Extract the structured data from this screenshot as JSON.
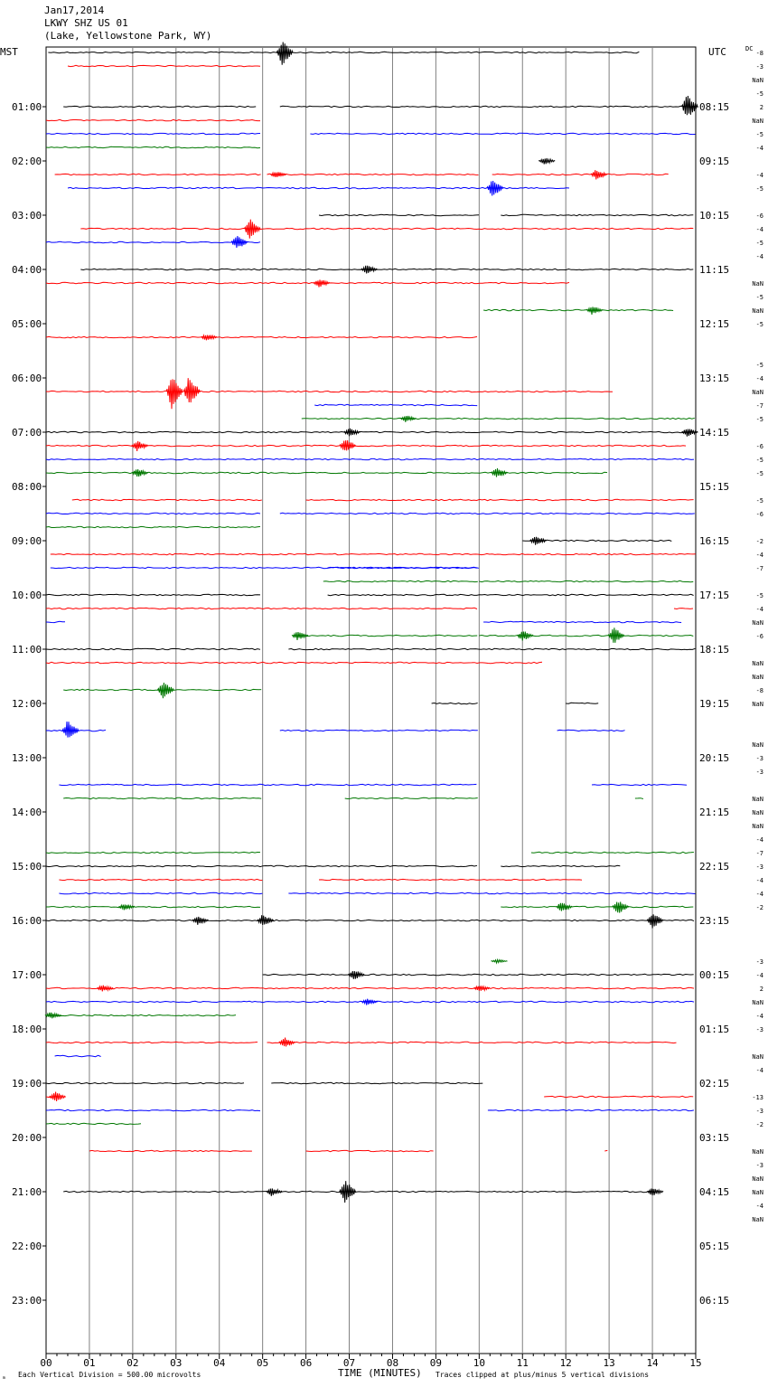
{
  "header": {
    "line1": "Jan17,2014",
    "line2": "LKWY SHZ US 01",
    "line3": "(Lake, Yellowstone Park, WY)"
  },
  "axis": {
    "left_label": "MST",
    "right_label": "UTC",
    "dc_label": "DC",
    "xlabel": "TIME (MINUTES)",
    "x_ticks": [
      "00",
      "01",
      "02",
      "03",
      "04",
      "05",
      "06",
      "07",
      "08",
      "09",
      "10",
      "11",
      "12",
      "13",
      "14",
      "15"
    ],
    "footer_left": "Each Vertical Division =   500.00 microvolts",
    "footer_right": "Traces clipped at plus/minus 5 vertical divisions",
    "corner_mark": "ₘ"
  },
  "colors": {
    "cycle": [
      "#000000",
      "#ff0000",
      "#0000ff",
      "#007700"
    ],
    "grid": "#808080"
  },
  "chart_data": {
    "type": "line",
    "title": "LKWY SHZ US 01",
    "xlabel": "TIME (MINUTES)",
    "xlim": [
      0,
      15
    ],
    "row_minutes": 15,
    "hour_labels_mst": [
      "01:00",
      "02:00",
      "03:00",
      "04:00",
      "05:00",
      "06:00",
      "07:00",
      "08:00",
      "09:00",
      "10:00",
      "11:00",
      "12:00",
      "13:00",
      "14:00",
      "15:00",
      "16:00",
      "17:00",
      "18:00",
      "19:00",
      "20:00",
      "21:00",
      "22:00",
      "23:00"
    ],
    "hour_labels_utc": [
      "08:15",
      "09:15",
      "10:15",
      "11:15",
      "12:15",
      "13:15",
      "14:15",
      "15:15",
      "16:15",
      "17:15",
      "18:15",
      "19:15",
      "20:15",
      "21:15",
      "22:15",
      "23:15",
      "00:15",
      "01:15",
      "02:15",
      "03:15",
      "04:15",
      "05:15",
      "06:15"
    ],
    "dc_offsets": [
      "-8",
      "-3",
      "NaN",
      "-5",
      "2",
      "NaN",
      "-5",
      "-4",
      "",
      "-4",
      "-5",
      "",
      "-6",
      "-4",
      "-5",
      "-4",
      "",
      "NaN",
      "-5",
      "NaN",
      "-5",
      "",
      "",
      "-5",
      "-4",
      "NaN",
      "-7",
      "-5",
      "",
      "-6",
      "-5",
      "-5",
      "",
      "-5",
      "-6",
      "",
      "-2",
      "-4",
      "-7",
      "",
      "-5",
      "-4",
      "NaN",
      "-6",
      "",
      "NaN",
      "NaN",
      "-8",
      "NaN",
      "",
      "",
      "NaN",
      "-3",
      "-3",
      "",
      "NaN",
      "NaN",
      "NaN",
      "-4",
      "-7",
      "-3",
      "-4",
      "-4",
      "-2",
      "",
      "",
      "",
      "-3",
      "-4",
      "2",
      "NaN",
      "-4",
      "-3",
      "",
      "NaN",
      "-4",
      "",
      "-13",
      "-3",
      "-2",
      "",
      "NaN",
      "-3",
      "NaN",
      "NaN",
      "-4",
      "NaN"
    ],
    "traces": [
      {
        "segments": [
          [
            0.05,
            13.7
          ]
        ],
        "events": [
          [
            5.45,
            14
          ]
        ]
      },
      {
        "segments": [
          [
            0.5,
            5.0
          ]
        ],
        "events": []
      },
      {
        "segments": [],
        "events": []
      },
      {
        "segments": [],
        "events": []
      },
      {
        "segments": [
          [
            0.4,
            4.9
          ],
          [
            5.4,
            15.0
          ]
        ],
        "events": [
          [
            14.8,
            14
          ]
        ]
      },
      {
        "segments": [
          [
            0.0,
            5.0
          ]
        ],
        "events": []
      },
      {
        "segments": [
          [
            0.0,
            5.0
          ],
          [
            6.1,
            15.0
          ]
        ],
        "events": []
      },
      {
        "segments": [
          [
            0.0,
            5.0
          ]
        ],
        "events": []
      },
      {
        "segments": [],
        "events": [
          [
            11.5,
            4
          ]
        ]
      },
      {
        "segments": [
          [
            0.2,
            5.0
          ],
          [
            5.1,
            10.0
          ],
          [
            10.3,
            14.4
          ]
        ],
        "events": [
          [
            5.3,
            4
          ],
          [
            12.7,
            6
          ]
        ]
      },
      {
        "segments": [
          [
            0.5,
            12.1
          ]
        ],
        "events": [
          [
            10.3,
            10
          ]
        ]
      },
      {
        "segments": [],
        "events": []
      },
      {
        "segments": [
          [
            6.3,
            10.0
          ],
          [
            10.5,
            15.0
          ]
        ],
        "events": []
      },
      {
        "segments": [
          [
            0.8,
            15.0
          ]
        ],
        "events": [
          [
            4.7,
            12
          ]
        ]
      },
      {
        "segments": [
          [
            0.0,
            5.0
          ]
        ],
        "events": [
          [
            4.4,
            8
          ]
        ]
      },
      {
        "segments": [],
        "events": []
      },
      {
        "segments": [
          [
            0.8,
            15.0
          ]
        ],
        "events": [
          [
            7.4,
            5
          ]
        ]
      },
      {
        "segments": [
          [
            0.0,
            12.1
          ]
        ],
        "events": [
          [
            6.3,
            5
          ]
        ]
      },
      {
        "segments": [],
        "events": []
      },
      {
        "segments": [
          [
            10.1,
            14.5
          ]
        ],
        "events": [
          [
            12.6,
            5
          ]
        ]
      },
      {
        "segments": [],
        "events": []
      },
      {
        "segments": [
          [
            0.0,
            10.0
          ]
        ],
        "events": [
          [
            3.7,
            4
          ]
        ]
      },
      {
        "segments": [],
        "events": []
      },
      {
        "segments": [],
        "events": []
      },
      {
        "segments": [],
        "events": []
      },
      {
        "segments": [
          [
            0.0,
            13.1
          ]
        ],
        "events": [
          [
            2.9,
            20
          ],
          [
            3.3,
            18
          ]
        ]
      },
      {
        "segments": [
          [
            6.2,
            10.0
          ]
        ],
        "events": []
      },
      {
        "segments": [
          [
            5.9,
            15.0
          ]
        ],
        "events": [
          [
            8.3,
            4
          ]
        ]
      },
      {
        "segments": [
          [
            0.0,
            15.0
          ]
        ],
        "events": [
          [
            7.0,
            5
          ],
          [
            14.8,
            5
          ]
        ]
      },
      {
        "segments": [
          [
            0.0,
            14.8
          ]
        ],
        "events": [
          [
            2.1,
            6
          ],
          [
            6.9,
            8
          ]
        ]
      },
      {
        "segments": [
          [
            0.0,
            15.0
          ]
        ],
        "events": []
      },
      {
        "segments": [
          [
            0.0,
            13.0
          ]
        ],
        "events": [
          [
            2.1,
            5
          ],
          [
            10.4,
            6
          ]
        ]
      },
      {
        "segments": [],
        "events": []
      },
      {
        "segments": [
          [
            0.6,
            5.0
          ],
          [
            6.0,
            15.0
          ]
        ],
        "events": []
      },
      {
        "segments": [
          [
            0.0,
            5.0
          ],
          [
            5.4,
            15.0
          ]
        ],
        "events": []
      },
      {
        "segments": [
          [
            0.0,
            5.0
          ]
        ],
        "events": []
      },
      {
        "segments": [
          [
            11.0,
            14.5
          ]
        ],
        "events": [
          [
            11.3,
            6
          ]
        ]
      },
      {
        "segments": [
          [
            0.1,
            15.0
          ]
        ],
        "events": []
      },
      {
        "segments": [
          [
            0.1,
            10.0
          ],
          [
            6.5,
            10.0
          ]
        ],
        "events": []
      },
      {
        "segments": [
          [
            6.4,
            10.0
          ],
          [
            10.0,
            15.0
          ]
        ],
        "events": []
      },
      {
        "segments": [
          [
            0.0,
            5.0
          ],
          [
            6.5,
            15.0
          ]
        ],
        "events": []
      },
      {
        "segments": [
          [
            0.0,
            10.0
          ],
          [
            14.5,
            15.0
          ]
        ],
        "events": []
      },
      {
        "segments": [
          [
            0.0,
            0.5
          ],
          [
            10.1,
            14.7
          ]
        ],
        "events": []
      },
      {
        "segments": [
          [
            5.7,
            10.0
          ],
          [
            10.0,
            15.0
          ]
        ],
        "events": [
          [
            5.8,
            5
          ],
          [
            11.0,
            6
          ],
          [
            13.1,
            10
          ]
        ]
      },
      {
        "segments": [
          [
            0.0,
            5.0
          ],
          [
            5.6,
            15.0
          ]
        ],
        "events": []
      },
      {
        "segments": [
          [
            0.0,
            11.5
          ]
        ],
        "events": []
      },
      {
        "segments": [],
        "events": []
      },
      {
        "segments": [
          [
            0.4,
            5.0
          ]
        ],
        "events": [
          [
            2.7,
            10
          ]
        ]
      },
      {
        "segments": [
          [
            8.9,
            10.0
          ],
          [
            12.0,
            12.8
          ]
        ],
        "events": []
      },
      {
        "segments": [],
        "events": []
      },
      {
        "segments": [
          [
            0.0,
            1.4
          ],
          [
            5.4,
            10.0
          ],
          [
            11.8,
            13.4
          ]
        ],
        "events": [
          [
            0.5,
            12
          ]
        ]
      },
      {
        "segments": [],
        "events": []
      },
      {
        "segments": [],
        "events": []
      },
      {
        "segments": [],
        "events": []
      },
      {
        "segments": [
          [
            0.3,
            10.0
          ],
          [
            12.6,
            14.8
          ]
        ],
        "events": []
      },
      {
        "segments": [
          [
            0.4,
            5.0
          ],
          [
            6.9,
            10.0
          ],
          [
            13.6,
            13.8
          ]
        ],
        "events": []
      },
      {
        "segments": [],
        "events": []
      },
      {
        "segments": [],
        "events": []
      },
      {
        "segments": [],
        "events": []
      },
      {
        "segments": [
          [
            0.0,
            5.0
          ],
          [
            11.2,
            15.0
          ]
        ],
        "events": []
      },
      {
        "segments": [
          [
            0.0,
            10.0
          ],
          [
            10.5,
            13.3
          ]
        ],
        "events": []
      },
      {
        "segments": [
          [
            0.3,
            5.0
          ],
          [
            6.3,
            12.4
          ]
        ],
        "events": []
      },
      {
        "segments": [
          [
            0.3,
            5.0
          ],
          [
            5.6,
            15.0
          ]
        ],
        "events": []
      },
      {
        "segments": [
          [
            0.0,
            5.0
          ],
          [
            10.5,
            15.0
          ]
        ],
        "events": [
          [
            1.8,
            4
          ],
          [
            11.9,
            6
          ],
          [
            13.2,
            8
          ]
        ]
      },
      {
        "segments": [
          [
            0.0,
            15.0
          ]
        ],
        "events": [
          [
            3.5,
            5
          ],
          [
            5.0,
            7
          ],
          [
            14.0,
            9
          ]
        ]
      },
      {
        "segments": [],
        "events": []
      },
      {
        "segments": [],
        "events": []
      },
      {
        "segments": [],
        "events": [
          [
            10.4,
            2
          ]
        ]
      },
      {
        "segments": [
          [
            5.0,
            15.0
          ]
        ],
        "events": [
          [
            7.1,
            6
          ]
        ]
      },
      {
        "segments": [
          [
            0.0,
            15.0
          ]
        ],
        "events": [
          [
            1.3,
            4
          ],
          [
            10.0,
            4
          ]
        ]
      },
      {
        "segments": [
          [
            0.0,
            15.0
          ]
        ],
        "events": [
          [
            7.4,
            4
          ]
        ]
      },
      {
        "segments": [
          [
            0.0,
            4.4
          ]
        ],
        "events": [
          [
            0.1,
            4
          ]
        ]
      },
      {
        "segments": [],
        "events": []
      },
      {
        "segments": [
          [
            0.0,
            4.9
          ],
          [
            5.1,
            14.6
          ]
        ],
        "events": [
          [
            5.5,
            6
          ]
        ]
      },
      {
        "segments": [
          [
            0.2,
            1.3
          ]
        ],
        "events": []
      },
      {
        "segments": [],
        "events": []
      },
      {
        "segments": [
          [
            0.0,
            4.6
          ],
          [
            5.2,
            10.1
          ]
        ],
        "events": []
      },
      {
        "segments": [
          [
            0.0,
            0.3
          ],
          [
            11.5,
            15.0
          ]
        ],
        "events": [
          [
            0.2,
            6
          ]
        ]
      },
      {
        "segments": [
          [
            0.0,
            5.0
          ],
          [
            10.2,
            15.0
          ]
        ],
        "events": []
      },
      {
        "segments": [
          [
            0.0,
            2.2
          ]
        ],
        "events": []
      },
      {
        "segments": [],
        "events": []
      },
      {
        "segments": [
          [
            1.0,
            4.8
          ],
          [
            6.0,
            9.0
          ],
          [
            12.9,
            13.0
          ]
        ],
        "events": []
      },
      {
        "segments": [],
        "events": []
      },
      {
        "segments": [],
        "events": []
      },
      {
        "segments": [
          [
            0.4,
            14.1
          ]
        ],
        "events": [
          [
            5.2,
            5
          ],
          [
            6.9,
            14
          ],
          [
            14.0,
            5
          ]
        ]
      },
      {
        "segments": [],
        "events": []
      }
    ]
  }
}
